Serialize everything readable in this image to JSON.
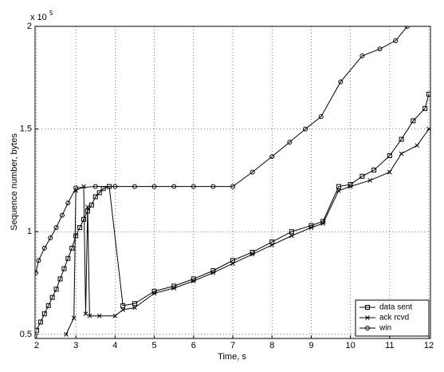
{
  "chart_data": {
    "type": "line",
    "x_label": "Time, s",
    "y_label": "Sequence number, bytes",
    "y_multiplier": "x 10",
    "y_multiplier_exponent": "5",
    "xlim": [
      1.96,
      12.04
    ],
    "ylim": [
      0.48,
      2.0
    ],
    "xticks": [
      2,
      3,
      4,
      5,
      6,
      7,
      8,
      9,
      10,
      11,
      12
    ],
    "yticks": [
      0.5,
      1,
      1.5,
      2
    ],
    "grid": true,
    "legend": "lower right",
    "series": [
      {
        "name": "data sent",
        "color": "#000000",
        "marker": "square",
        "x": [
          2,
          2.1,
          2.2,
          2.3,
          2.4,
          2.5,
          2.6,
          2.7,
          2.8,
          2.9,
          3,
          3.1,
          3.2,
          3.3,
          3.4,
          3.5,
          3.6,
          3.7,
          3.85,
          4.2,
          4.5,
          5,
          5.5,
          6,
          6.5,
          7,
          7.5,
          8,
          8.5,
          9,
          9.3,
          9.7,
          10,
          10.3,
          10.6,
          11,
          11.3,
          11.6,
          11.9,
          12
        ],
        "values": [
          0.52,
          0.56,
          0.6,
          0.64,
          0.68,
          0.72,
          0.77,
          0.82,
          0.87,
          0.92,
          0.98,
          1.02,
          1.06,
          1.1,
          1.13,
          1.17,
          1.19,
          1.21,
          1.22,
          0.64,
          0.65,
          0.71,
          0.735,
          0.77,
          0.81,
          0.86,
          0.9,
          0.95,
          1.0,
          1.03,
          1.05,
          1.22,
          1.23,
          1.27,
          1.3,
          1.37,
          1.45,
          1.54,
          1.6,
          1.67
        ]
      },
      {
        "name": "ack rcvd",
        "color": "#000000",
        "marker": "x",
        "x": [
          2.75,
          2.95,
          3.0,
          3.2,
          3.25,
          3.3,
          3.35,
          3.6,
          4.0,
          4.2,
          4.5,
          5,
          5.5,
          6,
          6.5,
          7,
          7.5,
          8,
          8.5,
          9,
          9.3,
          9.7,
          10,
          10.5,
          11,
          11.3,
          11.7,
          12
        ],
        "values": [
          0.5,
          0.58,
          1.2,
          1.22,
          0.6,
          1.12,
          0.59,
          0.59,
          0.59,
          0.62,
          0.63,
          0.7,
          0.725,
          0.76,
          0.8,
          0.845,
          0.89,
          0.935,
          0.98,
          1.02,
          1.04,
          1.2,
          1.22,
          1.25,
          1.29,
          1.38,
          1.42,
          1.5
        ]
      },
      {
        "name": "win",
        "color": "#000000",
        "marker": "circle",
        "x": [
          1.98,
          2.05,
          2.2,
          2.35,
          2.5,
          2.65,
          2.8,
          3.0,
          3.5,
          4.0,
          4.5,
          5,
          5.5,
          6,
          6.5,
          7,
          7.5,
          8,
          8.45,
          8.85,
          9.25,
          9.75,
          10.3,
          10.75,
          11.15,
          11.45
        ],
        "values": [
          0.8,
          0.86,
          0.92,
          0.97,
          1.02,
          1.08,
          1.14,
          1.214,
          1.22,
          1.22,
          1.22,
          1.22,
          1.22,
          1.22,
          1.22,
          1.22,
          1.29,
          1.366,
          1.436,
          1.5,
          1.56,
          1.73,
          1.856,
          1.89,
          1.93,
          2.0
        ]
      }
    ]
  }
}
